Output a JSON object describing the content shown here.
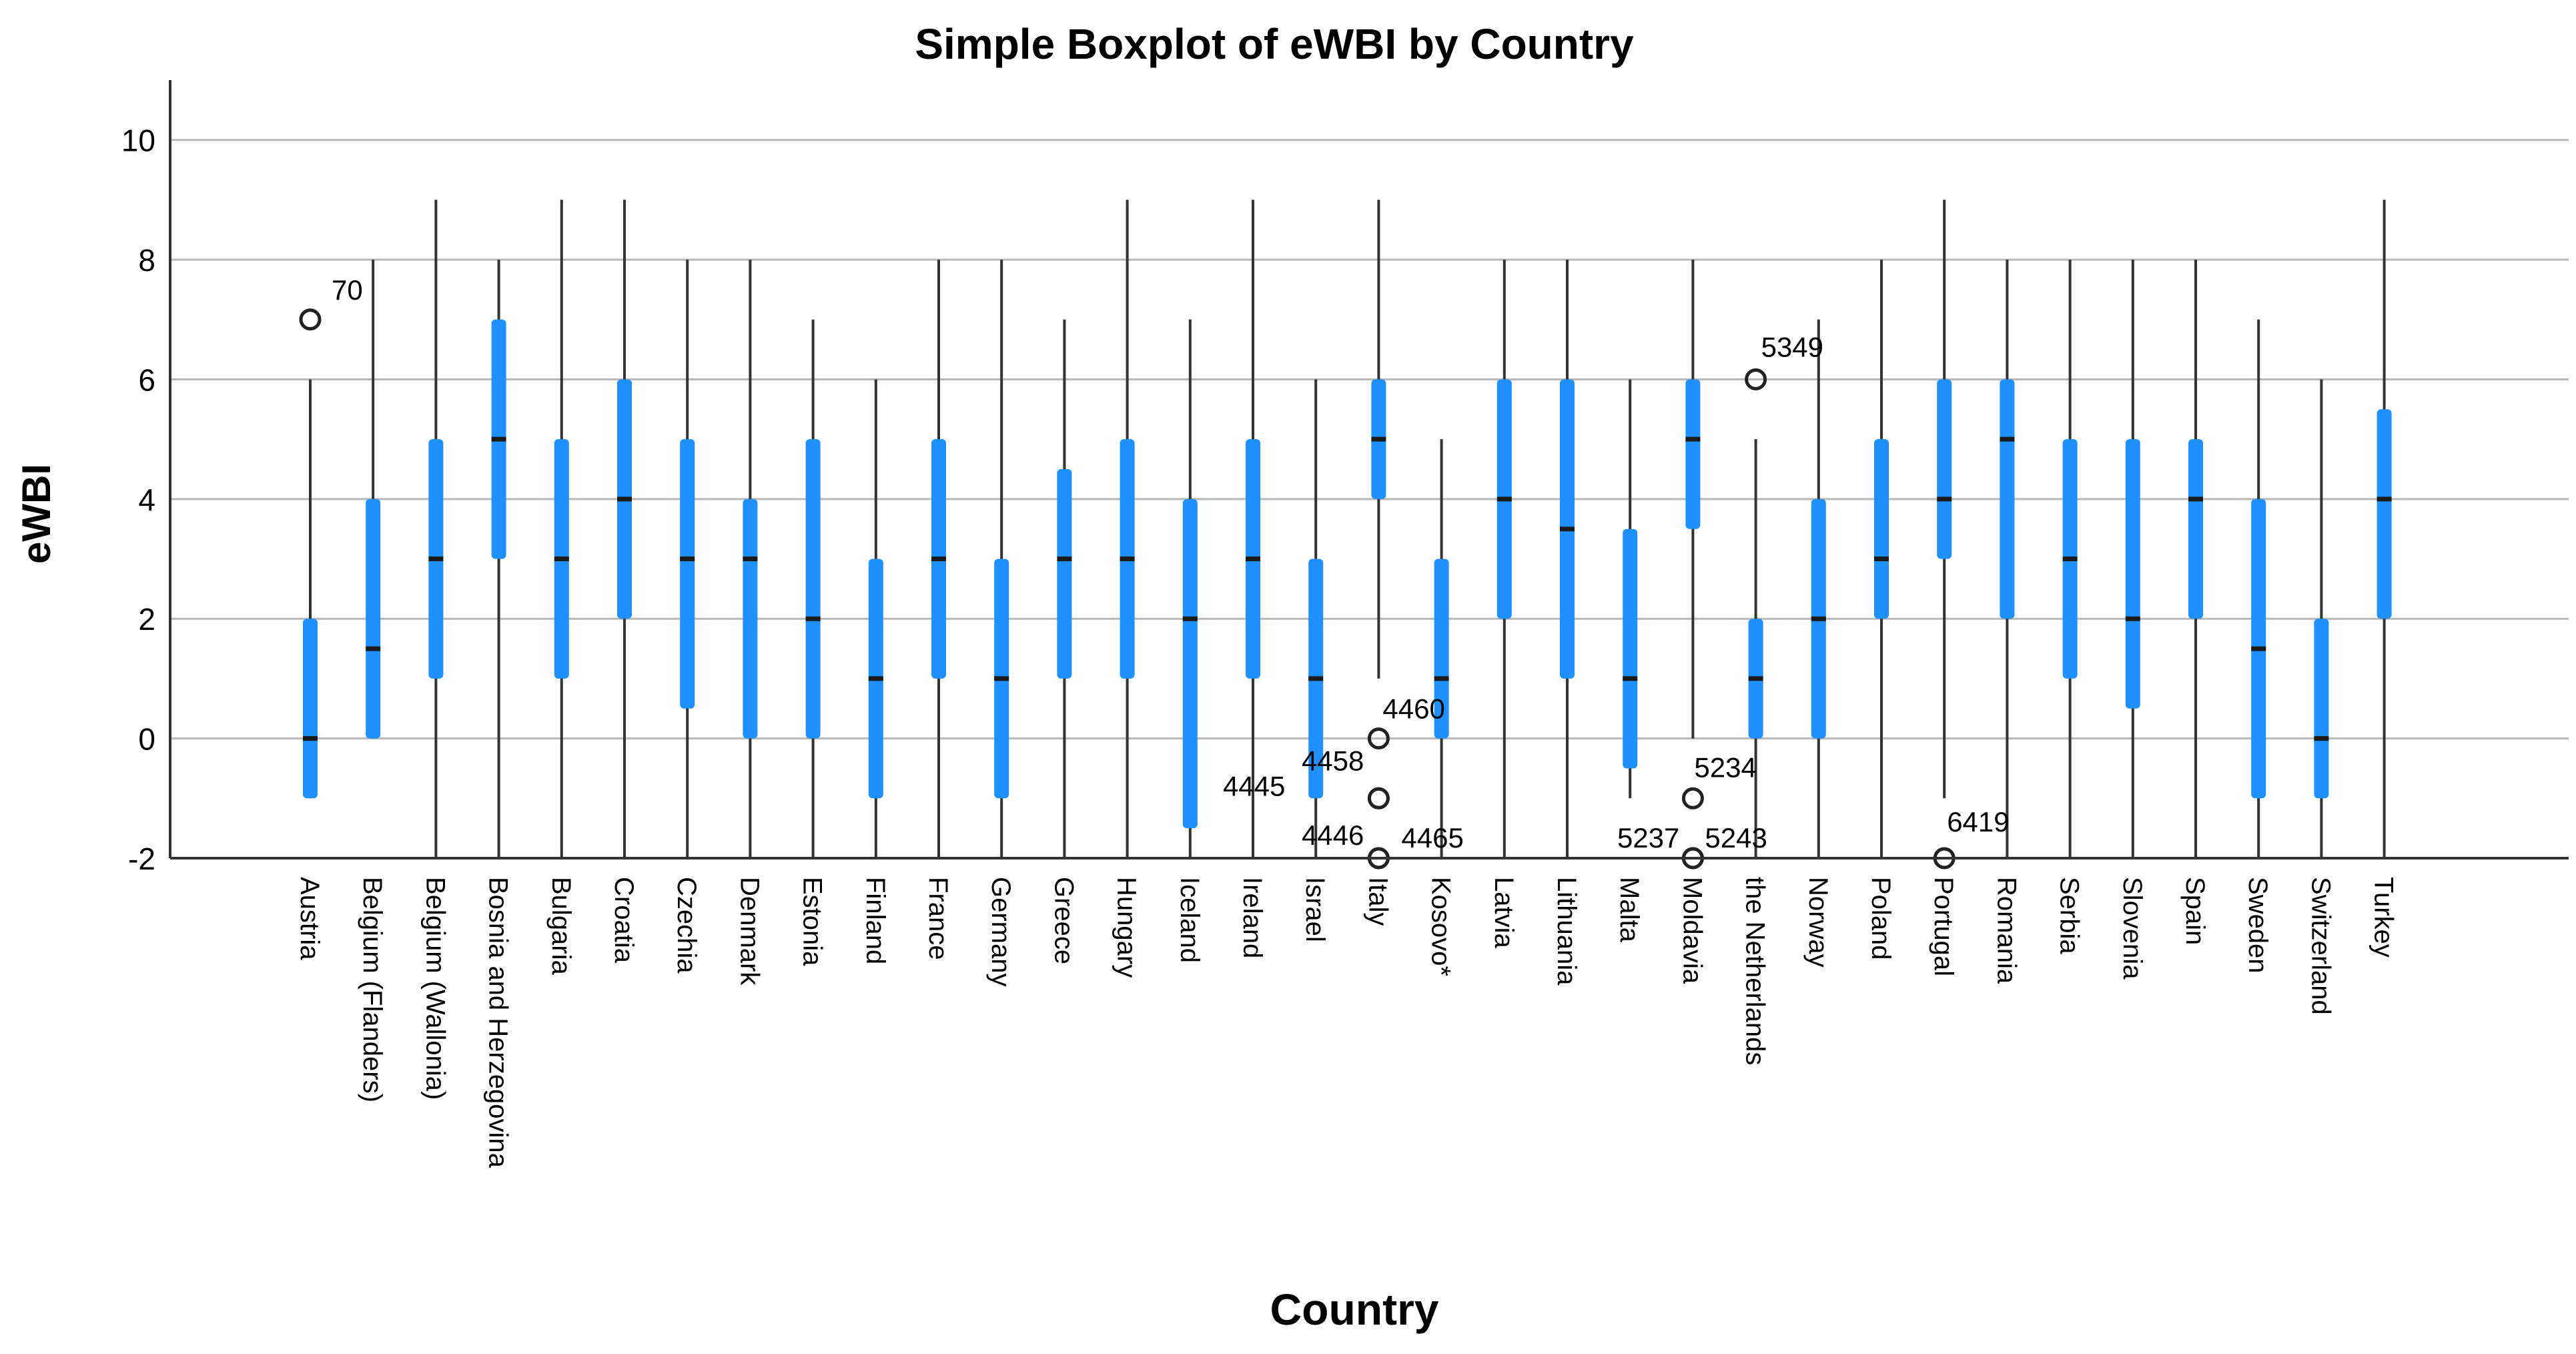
{
  "chart_data": {
    "type": "boxplot",
    "title": "Simple Boxplot of eWBI by Country",
    "xlabel": "Country",
    "ylabel": "eWBI",
    "ylim": [
      -2,
      11
    ],
    "yticks": [
      -2,
      0,
      2,
      4,
      6,
      8,
      10
    ],
    "grid": "horizontal",
    "box_color": "#1e90ff",
    "line_color": "#333333",
    "categories": [
      "Austria",
      "Belgium (Flanders)",
      "Belgium (Wallonia)",
      "Bosnia and Herzegovina",
      "Bulgaria",
      "Croatia",
      "Czechia",
      "Denmark",
      "Estonia",
      "Finland",
      "France",
      "Germany",
      "Greece",
      "Hungary",
      "Iceland",
      "Ireland",
      "Israel",
      "Italy",
      "Kosovo*",
      "Latvia",
      "Lithuania",
      "Malta",
      "Moldavia",
      "the Netherlands",
      "Norway",
      "Poland",
      "Portugal",
      "Romania",
      "Serbia",
      "Slovenia",
      "Spain",
      "Sweden",
      "Switzerland",
      "Turkey"
    ],
    "boxes": [
      {
        "min": -1,
        "q1": -1,
        "median": 0,
        "q3": 2,
        "max": 6
      },
      {
        "min": 0,
        "q1": 0,
        "median": 1.5,
        "q3": 4,
        "max": 8
      },
      {
        "min": -2,
        "q1": 1,
        "median": 3,
        "q3": 5,
        "max": 9
      },
      {
        "min": -2,
        "q1": 3,
        "median": 5,
        "q3": 7,
        "max": 8
      },
      {
        "min": -2,
        "q1": 1,
        "median": 3,
        "q3": 5,
        "max": 9
      },
      {
        "min": -2,
        "q1": 2,
        "median": 4,
        "q3": 6,
        "max": 9
      },
      {
        "min": -2,
        "q1": 0.5,
        "median": 3,
        "q3": 5,
        "max": 8
      },
      {
        "min": -2,
        "q1": 0,
        "median": 3,
        "q3": 4,
        "max": 8
      },
      {
        "min": -2,
        "q1": 0,
        "median": 2,
        "q3": 5,
        "max": 7
      },
      {
        "min": -2,
        "q1": -1,
        "median": 1,
        "q3": 3,
        "max": 6
      },
      {
        "min": -2,
        "q1": 1,
        "median": 3,
        "q3": 5,
        "max": 8
      },
      {
        "min": -2,
        "q1": -1,
        "median": 1,
        "q3": 3,
        "max": 8
      },
      {
        "min": -2,
        "q1": 1,
        "median": 3,
        "q3": 4.5,
        "max": 7
      },
      {
        "min": -2,
        "q1": 1,
        "median": 3,
        "q3": 5,
        "max": 9
      },
      {
        "min": -2,
        "q1": -1.5,
        "median": 2,
        "q3": 4,
        "max": 7
      },
      {
        "min": -2,
        "q1": 1,
        "median": 3,
        "q3": 5,
        "max": 9
      },
      {
        "min": -2,
        "q1": -1,
        "median": 1,
        "q3": 3,
        "max": 6
      },
      {
        "min": 1,
        "q1": 4,
        "median": 5,
        "q3": 6,
        "max": 9
      },
      {
        "min": -2,
        "q1": 0,
        "median": 1,
        "q3": 3,
        "max": 5
      },
      {
        "min": -2,
        "q1": 2,
        "median": 4,
        "q3": 6,
        "max": 8
      },
      {
        "min": -2,
        "q1": 1,
        "median": 3.5,
        "q3": 6,
        "max": 8
      },
      {
        "min": -1,
        "q1": -0.5,
        "median": 1,
        "q3": 3.5,
        "max": 6
      },
      {
        "min": 0,
        "q1": 3.5,
        "median": 5,
        "q3": 6,
        "max": 8
      },
      {
        "min": -2,
        "q1": 0,
        "median": 1,
        "q3": 2,
        "max": 5
      },
      {
        "min": -2,
        "q1": 0,
        "median": 2,
        "q3": 4,
        "max": 7
      },
      {
        "min": -2,
        "q1": 2,
        "median": 3,
        "q3": 5,
        "max": 8
      },
      {
        "min": -1,
        "q1": 3,
        "median": 4,
        "q3": 6,
        "max": 9
      },
      {
        "min": -2,
        "q1": 2,
        "median": 5,
        "q3": 6,
        "max": 8
      },
      {
        "min": -2,
        "q1": 1,
        "median": 3,
        "q3": 5,
        "max": 8
      },
      {
        "min": -2,
        "q1": 0.5,
        "median": 2,
        "q3": 5,
        "max": 8
      },
      {
        "min": -2,
        "q1": 2,
        "median": 4,
        "q3": 5,
        "max": 8
      },
      {
        "min": -2,
        "q1": -1,
        "median": 1.5,
        "q3": 4,
        "max": 7
      },
      {
        "min": -2,
        "q1": -1,
        "median": 0,
        "q3": 2,
        "max": 6
      },
      {
        "min": -2,
        "q1": 2,
        "median": 4,
        "q3": 5.5,
        "max": 9
      }
    ],
    "outliers": [
      {
        "category": "Austria",
        "value": 7,
        "label": "70"
      },
      {
        "category": "Italy",
        "value": 0,
        "label": "4460"
      },
      {
        "category": "Italy",
        "value": -1,
        "label": "4445"
      },
      {
        "category": "Italy",
        "value": -1,
        "label": "4458"
      },
      {
        "category": "Italy",
        "value": -2,
        "label": "4446"
      },
      {
        "category": "Italy",
        "value": -2,
        "label": "4465"
      },
      {
        "category": "Moldavia",
        "value": -1,
        "label": "5234"
      },
      {
        "category": "Moldavia",
        "value": -2,
        "label": "5237"
      },
      {
        "category": "Moldavia",
        "value": -2,
        "label": "5243"
      },
      {
        "category": "the Netherlands",
        "value": 6,
        "label": "5349"
      },
      {
        "category": "Portugal",
        "value": -2,
        "label": "6419"
      }
    ]
  }
}
